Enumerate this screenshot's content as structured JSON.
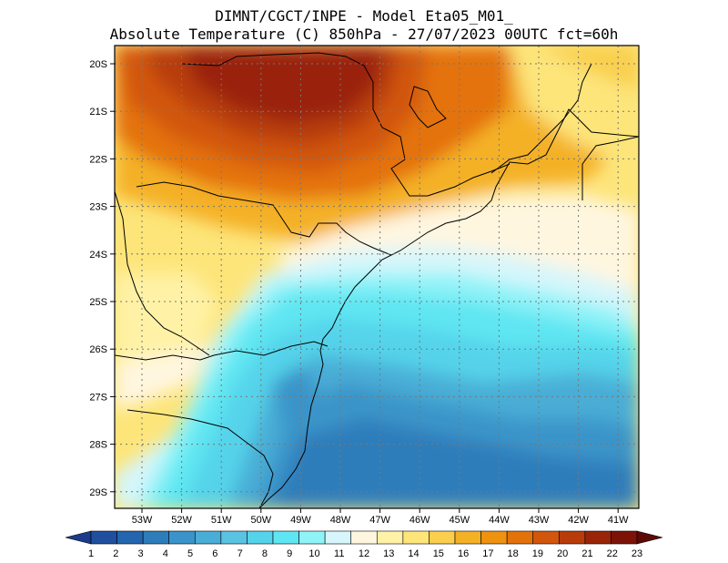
{
  "title": {
    "line1": "DIMNT/CGCT/INPE -  Model Eta05_M01_",
    "line2": "Absolute Temperature (C) 850hPa -  27/07/2023 00UTC fct=60h"
  },
  "map": {
    "lon_ticks": [
      "53W",
      "52W",
      "51W",
      "50W",
      "49W",
      "48W",
      "47W",
      "46W",
      "45W",
      "44W",
      "43W",
      "42W",
      "41W"
    ],
    "lat_ticks": [
      "20S",
      "21S",
      "22S",
      "23S",
      "24S",
      "25S",
      "26S",
      "27S",
      "28S",
      "29S"
    ],
    "grid": true
  },
  "colorbar": {
    "labels": [
      "1",
      "2",
      "3",
      "4",
      "5",
      "6",
      "7",
      "8",
      "9",
      "10",
      "11",
      "12",
      "13",
      "14",
      "15",
      "16",
      "17",
      "18",
      "19",
      "20",
      "21",
      "22",
      "23"
    ],
    "colors": [
      "#1b3a8c",
      "#1f4f9e",
      "#2466ae",
      "#2d7dbb",
      "#3a94c9",
      "#4aadd6",
      "#5ac3e2",
      "#55d3ea",
      "#5ee6f2",
      "#8ff3f8",
      "#d6f6fb",
      "#fff6e0",
      "#fff2a6",
      "#fde57a",
      "#f9cf4d",
      "#f4b126",
      "#ee9210",
      "#e4720b",
      "#d2560b",
      "#b83c09",
      "#9a2408",
      "#7d1307",
      "#5c0a05"
    ]
  }
}
